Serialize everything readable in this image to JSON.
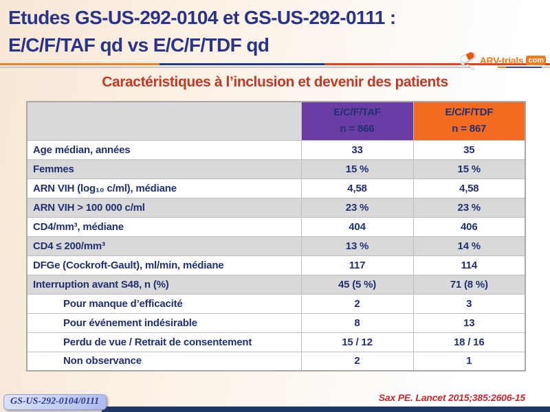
{
  "header": {
    "title_line1": "Etudes GS-US-292-0104 et GS-US-292-0111 :",
    "title_line2": "E/C/F/TAF qd vs E/C/F/TDF qd",
    "subtitle": "Caractéristiques à l’inclusion et devenir des patients",
    "logo": {
      "text": "ARV-trials",
      "tld": "com",
      "icon": "pill-capsule-icon"
    }
  },
  "table": {
    "columns": [
      {
        "key": "label",
        "name": "",
        "n": ""
      },
      {
        "key": "taf",
        "name": "E/C/F/TAF",
        "n": "n = 866",
        "color": "#6A3DA4"
      },
      {
        "key": "tdf",
        "name": "E/C/F/TDF",
        "n": "n = 867",
        "color": "#F26B21"
      }
    ],
    "rows": [
      {
        "label": "Age médian, années",
        "taf": "33",
        "tdf": "35",
        "indent": false,
        "shaded": false
      },
      {
        "label": "Femmes",
        "taf": "15 %",
        "tdf": "15 %",
        "indent": false,
        "shaded": true
      },
      {
        "label": "ARN VIH (log₁₀ c/ml), médiane",
        "taf": "4,58",
        "tdf": "4,58",
        "indent": false,
        "shaded": false
      },
      {
        "label": "ARN VIH > 100 000 c/ml",
        "taf": "23 %",
        "tdf": "23 %",
        "indent": false,
        "shaded": true
      },
      {
        "label": "CD4/mm³, médiane",
        "taf": "404",
        "tdf": "406",
        "indent": false,
        "shaded": false
      },
      {
        "label": "CD4 ≤ 200/mm³",
        "taf": "13 %",
        "tdf": "14 %",
        "indent": false,
        "shaded": true
      },
      {
        "label": "DFGe (Cockroft-Gault), ml/min, médiane",
        "taf": "117",
        "tdf": "114",
        "indent": false,
        "shaded": false
      },
      {
        "label": "Interruption avant S48, n (%)",
        "taf": "45 (5 %)",
        "tdf": "71 (8 %)",
        "indent": false,
        "shaded": true
      },
      {
        "label": "Pour manque d’efficacité",
        "taf": "2",
        "tdf": "3",
        "indent": true,
        "shaded": false
      },
      {
        "label": "Pour événement indésirable",
        "taf": "8",
        "tdf": "13",
        "indent": true,
        "shaded": false
      },
      {
        "label": "Perdu de vue / Retrait de consentement",
        "taf": "15 / 12",
        "tdf": "18 / 16",
        "indent": true,
        "shaded": false
      },
      {
        "label": "Non observance",
        "taf": "2",
        "tdf": "1",
        "indent": true,
        "shaded": false
      }
    ]
  },
  "footer": {
    "study_badge": "GS-US-292-0104/0111",
    "citation": "Sax PE. Lancet 2015;385:2606-15"
  },
  "colors": {
    "title_navy": "#293387",
    "subtitle_red": "#C13A25",
    "header_purple": "#6A3DA4",
    "header_orange": "#F26B21",
    "row_gray": "#D9D9D9",
    "table_text_navy": "#203072",
    "citation_red": "#C9282E",
    "bottom_bar_navy": "#1E3566"
  }
}
